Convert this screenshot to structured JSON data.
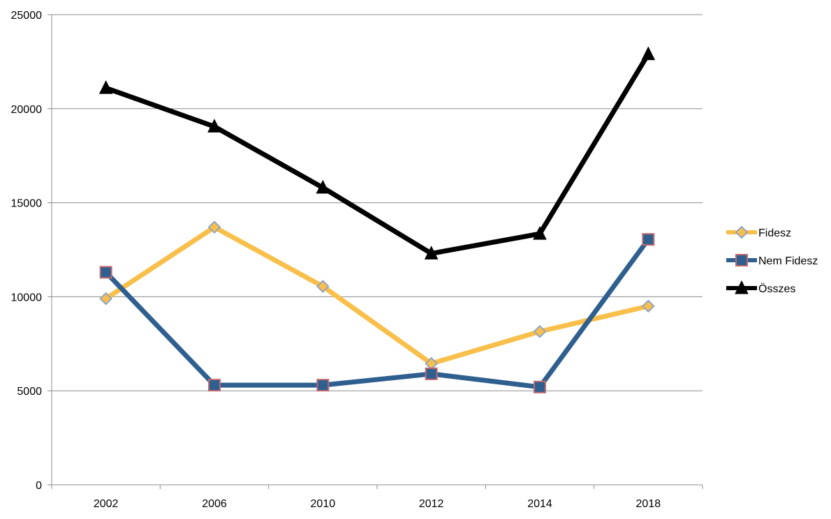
{
  "chart_data": {
    "type": "line",
    "title": "",
    "xlabel": "",
    "ylabel": "",
    "categories": [
      "2002",
      "2006",
      "2010",
      "2012",
      "2014",
      "2018"
    ],
    "ylim": [
      0,
      25000
    ],
    "yticks": [
      0,
      5000,
      10000,
      15000,
      20000,
      25000
    ],
    "grid": true,
    "legend": "right",
    "series": [
      {
        "name": "Fidesz",
        "values": [
          9900,
          13700,
          10550,
          6450,
          8150,
          9500
        ],
        "color": "#f9bf4b",
        "marker": "diamond"
      },
      {
        "name": "Nem Fidesz",
        "values": [
          11300,
          5300,
          5300,
          5900,
          5200,
          13050
        ],
        "color": "#2f5f8f",
        "marker": "square"
      },
      {
        "name": "Összes",
        "values": [
          21100,
          19050,
          15800,
          12300,
          13350,
          22900
        ],
        "color": "#000000",
        "marker": "triangle"
      }
    ]
  }
}
